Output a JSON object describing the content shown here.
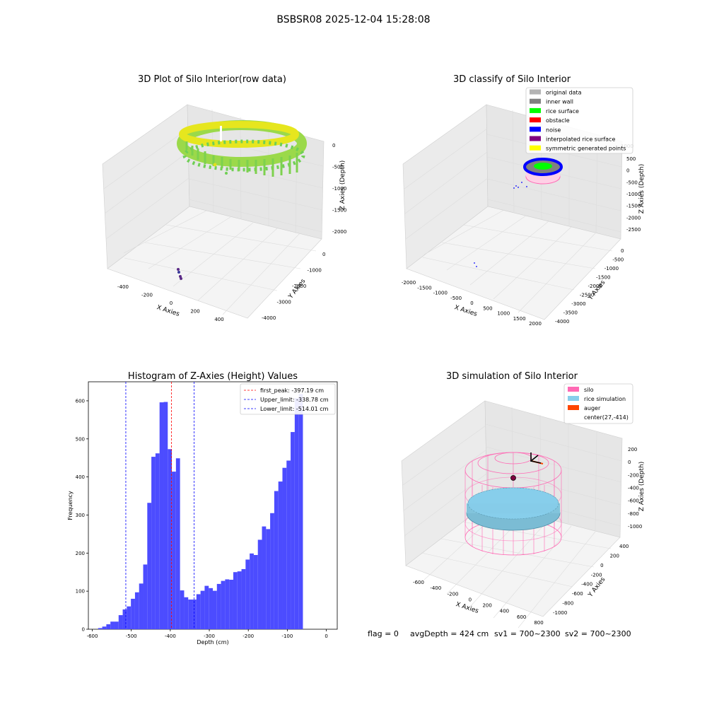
{
  "figure": {
    "suptitle": "BSBSR08 2025-12-04 15:28:08",
    "footer": {
      "flag": "flag = 0",
      "avg_depth": "avgDepth = 424 cm",
      "sv1": "sv1 = 700~2300",
      "sv2": "sv2 = 700~2300"
    }
  },
  "colors": {
    "bar": "#4c4cff",
    "first_peak": "#ff0000",
    "limits": "#0000ff",
    "original_data": "#b3b3b3",
    "inner_wall": "#808080",
    "rice_surface": "#00ff00",
    "obstacle": "#ff0000",
    "noise": "#0000ff",
    "interpolated": "#800080",
    "symmetric": "#ffff00",
    "silo": "#ff69b4",
    "rice_simulation": "#87ceeb",
    "auger": "#ff4500"
  },
  "plot1": {
    "title": "3D Plot of Silo Interior(row data)",
    "xlabel": "X Axies",
    "ylabel": "Y Axies",
    "zlabel": "Z Axies (Depth)",
    "xticks": [
      "-400",
      "-200",
      "0",
      "200",
      "400"
    ],
    "yticks": [
      "0",
      "-1000",
      "-2000",
      "-3000",
      "-4000"
    ],
    "zticks": [
      "0",
      "-500",
      "-1000",
      "-1500",
      "-2000"
    ]
  },
  "plot2": {
    "title": "3D classify of Silo Interior",
    "xlabel": "X Axies",
    "ylabel": "Y Axies",
    "zlabel": "Z Axies (Depth)",
    "xticks": [
      "-2000",
      "-1500",
      "-1000",
      "-500",
      "0",
      "500",
      "1000",
      "1500",
      "2000"
    ],
    "yticks": [
      "0",
      "-500",
      "-1000",
      "-1500",
      "-2000",
      "-2500",
      "-3000",
      "-3500",
      "-4000"
    ],
    "zticks": [
      "500",
      "0",
      "-500",
      "-1000",
      "-1500",
      "-2000",
      "-2500"
    ],
    "ztop": "1000",
    "legend": [
      {
        "label": "original data",
        "color": "#b3b3b3"
      },
      {
        "label": "inner wall",
        "color": "#808080"
      },
      {
        "label": "rice surface",
        "color": "#00ff00"
      },
      {
        "label": "obstacle",
        "color": "#ff0000"
      },
      {
        "label": "noise",
        "color": "#0000ff"
      },
      {
        "label": "interpolated rice surface",
        "color": "#800080"
      },
      {
        "label": "symmetric generated points",
        "color": "#ffff00"
      }
    ]
  },
  "plot4": {
    "title": "3D simulation of Silo Interior",
    "xlabel": "X Axies",
    "ylabel": "Y Axies",
    "zlabel": "Z Axies (Depth)",
    "xticks": [
      "-600",
      "-400",
      "-200",
      "0",
      "200",
      "400",
      "600",
      "800"
    ],
    "yticks": [
      "400",
      "200",
      "0",
      "-200",
      "-400",
      "-600",
      "-800",
      "-1000"
    ],
    "zticks": [
      "200",
      "0",
      "-200",
      "-400",
      "-600",
      "-800",
      "-1000"
    ],
    "legend": [
      {
        "label": "silo",
        "color": "#ff69b4",
        "marker": "patch"
      },
      {
        "label": "rice simulation",
        "color": "#87ceeb",
        "marker": "patch"
      },
      {
        "label": "auger",
        "color": "#ff4500",
        "marker": "patch"
      },
      {
        "label": "center(27,-414)",
        "color": "",
        "marker": "none"
      }
    ]
  },
  "chart_data": {
    "type": "bar",
    "title": "Histogram of Z-Axies (Height) Values",
    "xlabel": "Depth (cm)",
    "ylabel": "Frequency",
    "xlim": [
      -610,
      28
    ],
    "ylim": [
      0,
      650
    ],
    "xticks": [
      -600,
      -500,
      -400,
      -300,
      -200,
      -100,
      0
    ],
    "yticks": [
      0,
      100,
      200,
      300,
      400,
      500,
      600
    ],
    "bin_width": 10.5,
    "bin_start": -585,
    "values": [
      3,
      7,
      13,
      20,
      20,
      37,
      52,
      60,
      80,
      97,
      120,
      170,
      332,
      453,
      462,
      596,
      597,
      473,
      414,
      449,
      102,
      84,
      78,
      78,
      92,
      101,
      114,
      108,
      101,
      119,
      127,
      131,
      130,
      150,
      152,
      158,
      183,
      199,
      195,
      235,
      270,
      263,
      305,
      363,
      388,
      424,
      443,
      518,
      607,
      618
    ],
    "vlines": [
      {
        "x": -397.19,
        "label": "first_peak: -397.19 cm",
        "color": "#ff0000"
      },
      {
        "x": -338.78,
        "label": "Upper_limit: -338.78 cm",
        "color": "#0000ff"
      },
      {
        "x": -514.01,
        "label": "Lower_limit: -514.01 cm",
        "color": "#0000ff"
      }
    ],
    "grid": false,
    "legend_position": "top-right"
  }
}
